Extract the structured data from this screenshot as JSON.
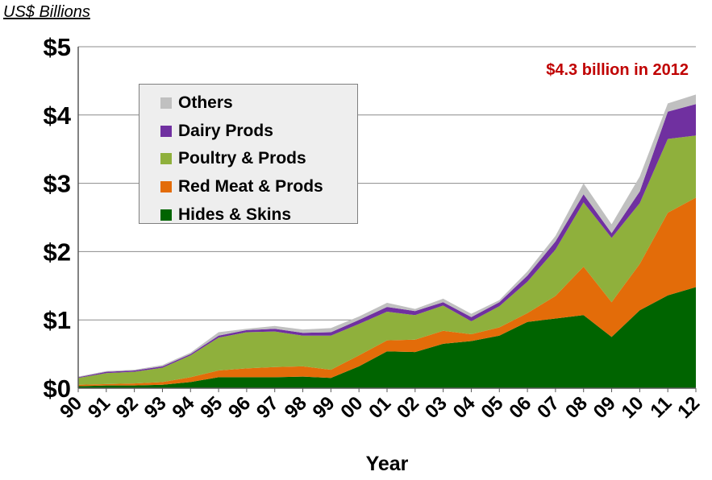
{
  "chart_data": {
    "type": "area",
    "stacked": true,
    "units_label": "US$ Billions",
    "xlabel": "Year",
    "ylabel": "",
    "annotation": "$4.3 billion  in 2012",
    "ylim": [
      0,
      5
    ],
    "y_ticks": [
      "$0",
      "$1",
      "$2",
      "$3",
      "$4",
      "$5"
    ],
    "grid": "horizontal",
    "legend_position": "upper-left",
    "categories": [
      "90",
      "91",
      "92",
      "93",
      "94",
      "95",
      "96",
      "97",
      "98",
      "99",
      "00",
      "01",
      "02",
      "03",
      "04",
      "05",
      "06",
      "07",
      "08",
      "09",
      "10",
      "11",
      "12"
    ],
    "series": [
      {
        "name": "Hides & Skins",
        "color": "#006400",
        "values": [
          0.03,
          0.04,
          0.04,
          0.05,
          0.09,
          0.16,
          0.16,
          0.16,
          0.17,
          0.15,
          0.32,
          0.54,
          0.53,
          0.65,
          0.69,
          0.77,
          0.97,
          1.02,
          1.07,
          0.75,
          1.14,
          1.36,
          1.48
        ]
      },
      {
        "name": "Red Meat & Prods",
        "color": "#e36c09",
        "values": [
          0.02,
          0.02,
          0.03,
          0.04,
          0.07,
          0.1,
          0.13,
          0.15,
          0.15,
          0.12,
          0.16,
          0.16,
          0.18,
          0.19,
          0.1,
          0.12,
          0.13,
          0.33,
          0.71,
          0.51,
          0.68,
          1.21,
          1.31
        ]
      },
      {
        "name": "Poultry & Prods",
        "color": "#8fb03c",
        "values": [
          0.1,
          0.16,
          0.17,
          0.21,
          0.32,
          0.48,
          0.53,
          0.52,
          0.45,
          0.5,
          0.46,
          0.42,
          0.36,
          0.37,
          0.19,
          0.31,
          0.46,
          0.68,
          0.94,
          0.94,
          0.89,
          1.08,
          0.91
        ]
      },
      {
        "name": "Dairy Prods",
        "color": "#7030a0",
        "values": [
          0.01,
          0.02,
          0.02,
          0.02,
          0.02,
          0.03,
          0.03,
          0.04,
          0.04,
          0.05,
          0.06,
          0.07,
          0.06,
          0.05,
          0.06,
          0.06,
          0.09,
          0.12,
          0.12,
          0.07,
          0.17,
          0.4,
          0.46
        ]
      },
      {
        "name": "Others",
        "color": "#c0c0c0",
        "values": [
          0.01,
          0.01,
          0.01,
          0.02,
          0.02,
          0.05,
          0.02,
          0.04,
          0.05,
          0.06,
          0.05,
          0.06,
          0.03,
          0.05,
          0.05,
          0.03,
          0.06,
          0.08,
          0.16,
          0.13,
          0.22,
          0.12,
          0.14
        ]
      }
    ]
  }
}
